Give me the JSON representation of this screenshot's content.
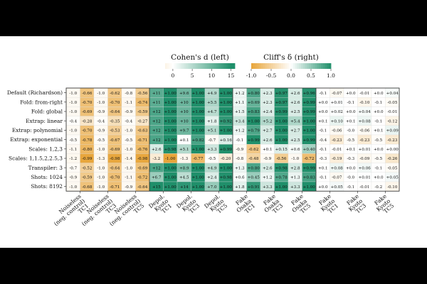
{
  "chart_data": {
    "type": "heatmap",
    "legends": [
      {
        "label": "Cohen's d (left)",
        "ticks": [
          "0",
          "5",
          "10",
          "15"
        ],
        "range": [
          -2,
          16
        ]
      },
      {
        "label": "Cliff's δ (right)",
        "ticks": [
          "-1.0",
          "-0.5",
          "0.0",
          "0.5",
          "1.0"
        ],
        "range": [
          -1,
          1
        ]
      }
    ],
    "colors": {
      "positive": "#1f8f6a",
      "negative": "#e8a53a",
      "neutral": "#ffffff"
    },
    "rows": [
      "Default (Richardson)",
      "Fold: from-right",
      "Fold: global",
      "Extrap: linear",
      "Extrap: polynomial",
      "Extrap: exponential",
      "Scales: 1,2,3",
      "Scales: 1,1.5,2,2.5,3",
      "Transpiler: 3",
      "Shots: 1024",
      "Shots: 8192"
    ],
    "columns": [
      [
        "Noiseless",
        "(neg. control)",
        "TC1"
      ],
      [
        "Noiseless",
        "(neg. control)",
        "TC3"
      ],
      [
        "Noiseless",
        "(neg. control)",
        "TC5"
      ],
      [
        "Depol.",
        "Kyoto",
        "TC1"
      ],
      [
        "Depol.",
        "Kyoto",
        "TC3"
      ],
      [
        "Depol.",
        "Kyoto",
        "TC5"
      ],
      [
        "Fake",
        "Osaka",
        "TC1"
      ],
      [
        "Fake",
        "Osaka",
        "TC3"
      ],
      [
        "Fake",
        "Osaka",
        "TC5"
      ],
      [
        "Fake",
        "Kyoto",
        "TC1"
      ],
      [
        "Fake",
        "Kyoto",
        "TC3"
      ],
      [
        "Fake",
        "Kyoto",
        "TC5"
      ]
    ],
    "cells": [
      [
        [
          "-1.0",
          "-0.66"
        ],
        [
          "-1.0",
          "-0.62"
        ],
        [
          "-0.8",
          "-0.56"
        ],
        [
          "+11",
          "+1.00"
        ],
        [
          "+9.6",
          "+1.00"
        ],
        [
          "+4.9",
          "+1.00"
        ],
        [
          "+1.2",
          "+0.80"
        ],
        [
          "+2.3",
          "+0.97"
        ],
        [
          "+2.6",
          "+0.96"
        ],
        [
          "-0.1",
          "-0.07"
        ],
        [
          "+0.0",
          "-0.01"
        ],
        [
          "+0.0",
          "+0.04"
        ]
      ],
      [
        [
          "-1.0",
          "-0.70"
        ],
        [
          "-1.0",
          "-0.70"
        ],
        [
          "-1.1",
          "-0.74"
        ],
        [
          "+11",
          "+1.00"
        ],
        [
          "+10",
          "+1.00"
        ],
        [
          "+5.5",
          "+1.00"
        ],
        [
          "+1.1",
          "+0.69"
        ],
        [
          "+2.3",
          "+0.97"
        ],
        [
          "+2.6",
          "+0.99"
        ],
        [
          "+0.0",
          "+0.01"
        ],
        [
          "-0.1",
          "-0.10"
        ],
        [
          "-0.1",
          "-0.05"
        ]
      ],
      [
        [
          "-1.0",
          "-0.69"
        ],
        [
          "-0.9",
          "-0.64"
        ],
        [
          "-0.9",
          "-0.59"
        ],
        [
          "+12",
          "+1.00"
        ],
        [
          "+10",
          "+1.00"
        ],
        [
          "+4.7",
          "+1.00"
        ],
        [
          "+1.5",
          "+0.83"
        ],
        [
          "+2.4",
          "+0.99"
        ],
        [
          "+2.5",
          "+0.99"
        ],
        [
          "+0.0",
          "+0.02"
        ],
        [
          "+0.0",
          "+0.04"
        ],
        [
          "+0.0",
          "-0.01"
        ]
      ],
      [
        [
          "-0.4",
          "-0.28"
        ],
        [
          "-0.4",
          "-0.35"
        ],
        [
          "-0.4",
          "-0.27"
        ],
        [
          "+12",
          "+1.00"
        ],
        [
          "+10",
          "+1.00"
        ],
        [
          "+1.8",
          "+0.92"
        ],
        [
          "+3.4",
          "+1.00"
        ],
        [
          "+5.2",
          "+1.00"
        ],
        [
          "+5.4",
          "+1.00"
        ],
        [
          "+0.1",
          "+0.10"
        ],
        [
          "+0.1",
          "+0.08"
        ],
        [
          "-0.1",
          "-0.12"
        ]
      ],
      [
        [
          "-1.0",
          "-0.70"
        ],
        [
          "-0.9",
          "-0.53"
        ],
        [
          "-1.0",
          "-0.63"
        ],
        [
          "+12",
          "+1.00"
        ],
        [
          "+9.7",
          "+1.00"
        ],
        [
          "+5.1",
          "+1.00"
        ],
        [
          "+1.2",
          "+0.79"
        ],
        [
          "+2.7",
          "+1.00"
        ],
        [
          "+2.7",
          "+1.00"
        ],
        [
          "-0.1",
          "-0.06"
        ],
        [
          "-0.0",
          "-0.06"
        ],
        [
          "+0.1",
          "+0.09"
        ]
      ],
      [
        [
          "-0.5",
          "-0.78"
        ],
        [
          "-0.5",
          "-0.67"
        ],
        [
          "-0.5",
          "-0.71"
        ],
        [
          "+12",
          "+1.00"
        ],
        [
          "+0.1",
          "+0.82"
        ],
        [
          "-0.7",
          "+0.16"
        ],
        [
          "-0.1",
          "+0.99"
        ],
        [
          "+2.6",
          "+1.00"
        ],
        [
          "+2.5",
          "+0.99"
        ],
        [
          "-0.4",
          "-0.23"
        ],
        [
          "-0.5",
          "-0.23"
        ],
        [
          "-0.5",
          "-0.23"
        ]
      ],
      [
        [
          "-1.1",
          "-0.80"
        ],
        [
          "-1.0",
          "-0.69"
        ],
        [
          "-1.0",
          "-0.76"
        ],
        [
          "+2.6",
          "+0.98"
        ],
        [
          "+5.1",
          "+1.00"
        ],
        [
          "+3.3",
          "+0.99"
        ],
        [
          "-0.9",
          "-0.62"
        ],
        [
          "+0.1",
          "+0.15"
        ],
        [
          "+0.6",
          "+0.40"
        ],
        [
          "-0.1",
          "-0.01"
        ],
        [
          "+0.1",
          "+0.01"
        ],
        [
          "+0.0",
          "+0.00"
        ]
      ],
      [
        [
          "-1.2",
          "-0.99"
        ],
        [
          "-1.3",
          "-0.98"
        ],
        [
          "-1.4",
          "-0.98"
        ],
        [
          "-3.2",
          "-1.00"
        ],
        [
          "-1.3",
          "-0.77"
        ],
        [
          "-0.5",
          "-0.20"
        ],
        [
          "-0.8",
          "-0.48"
        ],
        [
          "-0.9",
          "-0.56"
        ],
        [
          "-1.0",
          "-0.72"
        ],
        [
          "-0.3",
          "-0.19"
        ],
        [
          "-0.3",
          "-0.09"
        ],
        [
          "-0.5",
          "-0.26"
        ]
      ],
      [
        [
          "-0.7",
          "-0.52"
        ],
        [
          "-1.0",
          "-0.64"
        ],
        [
          "-1.0",
          "-0.69"
        ],
        [
          "+12",
          "+1.00"
        ],
        [
          "+8.9",
          "+1.00"
        ],
        [
          "+4.9",
          "+1.00"
        ],
        [
          "+1.3",
          "+0.80"
        ],
        [
          "+2.6",
          "+0.98"
        ],
        [
          "+2.8",
          "+0.99"
        ],
        [
          "+0.1",
          "+0.08"
        ],
        [
          "+0.0",
          "+0.06"
        ],
        [
          "-0.1",
          "-0.05"
        ]
      ],
      [
        [
          "-0.9",
          "-0.59"
        ],
        [
          "-1.0",
          "-0.70"
        ],
        [
          "-1.1",
          "-0.72"
        ],
        [
          "+6.7",
          "+1.00"
        ],
        [
          "+4.5",
          "+1.00"
        ],
        [
          "+2.4",
          "+0.98"
        ],
        [
          "+0.6",
          "+0.45"
        ],
        [
          "+1.2",
          "+0.78"
        ],
        [
          "+1.3",
          "+0.83"
        ],
        [
          "-0.1",
          "-0.07"
        ],
        [
          "-0.0",
          "+0.01"
        ],
        [
          "+0.0",
          "+0.05"
        ]
      ],
      [
        [
          "-1.0",
          "-0.68"
        ],
        [
          "-1.0",
          "-0.71"
        ],
        [
          "-0.9",
          "-0.64"
        ],
        [
          "+15",
          "+1.00"
        ],
        [
          "+14",
          "+1.00"
        ],
        [
          "+7.0",
          "+1.00"
        ],
        [
          "+1.8",
          "+0.91"
        ],
        [
          "+3.3",
          "+1.00"
        ],
        [
          "+3.3",
          "+1.00"
        ],
        [
          "+0.0",
          "+0.05"
        ],
        [
          "-0.1",
          "-0.01"
        ],
        [
          "-0.2",
          "-0.10"
        ]
      ]
    ]
  }
}
